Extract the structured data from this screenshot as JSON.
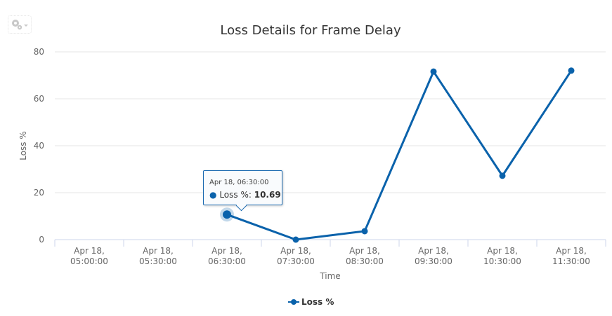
{
  "toolbar": {
    "menu_icon": "gear-icon"
  },
  "chart_data": {
    "type": "line",
    "title": "Loss Details for Frame Delay",
    "xlabel": "Time",
    "ylabel": "Loss %",
    "categories": [
      "Apr 18, 05:00:00",
      "Apr 18, 05:30:00",
      "Apr 18, 06:30:00",
      "Apr 18, 07:30:00",
      "Apr 18, 08:30:00",
      "Apr 18, 09:30:00",
      "Apr 18, 10:30:00",
      "Apr 18, 11:30:00"
    ],
    "category_lines": [
      [
        "Apr 18,",
        "05:00:00"
      ],
      [
        "Apr 18,",
        "05:30:00"
      ],
      [
        "Apr 18,",
        "06:30:00"
      ],
      [
        "Apr 18,",
        "07:30:00"
      ],
      [
        "Apr 18,",
        "08:30:00"
      ],
      [
        "Apr 18,",
        "09:30:00"
      ],
      [
        "Apr 18,",
        "10:30:00"
      ],
      [
        "Apr 18,",
        "11:30:00"
      ]
    ],
    "series": [
      {
        "name": "Loss %",
        "color": "#0a62ab",
        "values": [
          null,
          null,
          10.69,
          0,
          3.6,
          71.6,
          27.2,
          72
        ]
      }
    ],
    "ylim": [
      0,
      80
    ],
    "yticks": [
      0,
      20,
      40,
      60,
      80
    ],
    "grid": true,
    "legend": "bottom-center",
    "tooltip": {
      "header": "Apr 18, 06:30:00",
      "label": "Loss %: ",
      "value": "10.69",
      "index": 2
    }
  }
}
